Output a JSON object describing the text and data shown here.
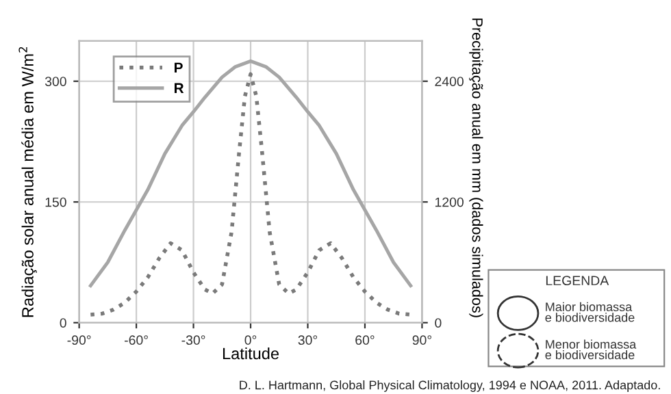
{
  "chart_data": {
    "type": "line",
    "xlabel": "Latitude",
    "ylabel": "Radiação solar anual média em W/m$^{2}$",
    "y2label": "Precipitação anual em mm (dados simulados)",
    "xlim": [
      -90,
      90
    ],
    "xticks": [
      {
        "value": -90,
        "label": "-90°"
      },
      {
        "value": -60,
        "label": "-60°"
      },
      {
        "value": -30,
        "label": "-30°"
      },
      {
        "value": 0,
        "label": "0°"
      },
      {
        "value": 30,
        "label": "30°"
      },
      {
        "value": 60,
        "label": "60°"
      },
      {
        "value": 90,
        "label": "90°"
      }
    ],
    "ylim": [
      0,
      350
    ],
    "yticks": [
      0,
      150,
      300
    ],
    "y2lim": [
      0,
      2800
    ],
    "y2ticks": [
      0,
      1200,
      2400
    ],
    "grid": true,
    "legend": "top left",
    "series": [
      {
        "name": "P",
        "color": "#7a7a7a",
        "axis": "y2",
        "line_style": "dotted",
        "x": [
          -84,
          -78,
          -72,
          -66,
          -60,
          -54,
          -48,
          -42,
          -36,
          -30,
          -24,
          -20,
          -15,
          -10,
          -6,
          -3,
          0,
          3,
          6,
          10,
          15,
          20,
          24,
          30,
          36,
          42,
          48,
          54,
          60,
          66,
          72,
          78,
          84
        ],
        "values": [
          80,
          90,
          130,
          200,
          310,
          450,
          640,
          790,
          720,
          500,
          330,
          290,
          380,
          900,
          1700,
          2250,
          2470,
          2250,
          1700,
          900,
          380,
          290,
          330,
          500,
          720,
          790,
          640,
          450,
          310,
          200,
          130,
          90,
          80
        ]
      },
      {
        "name": "R",
        "color": "#a6a6a6",
        "axis": "y",
        "line_style": "solid",
        "x": [
          -84,
          -75,
          -66,
          -60,
          -54,
          -45,
          -36,
          -30,
          -24,
          -15,
          -8,
          0,
          8,
          15,
          24,
          30,
          36,
          45,
          54,
          60,
          66,
          75,
          84
        ],
        "values": [
          46,
          75,
          115,
          140,
          165,
          210,
          245,
          262,
          280,
          305,
          318,
          325,
          318,
          305,
          280,
          262,
          245,
          210,
          165,
          140,
          115,
          75,
          46
        ]
      }
    ],
    "annotations": [
      "LEGENDA",
      "Maior biomassa\ne biodiversidade",
      "Menor biomassa\ne biodiversidade",
      "D. L. Hartmann, Global Physical Climatology, 1994 e NOAA, 2011. Adaptado."
    ]
  }
}
